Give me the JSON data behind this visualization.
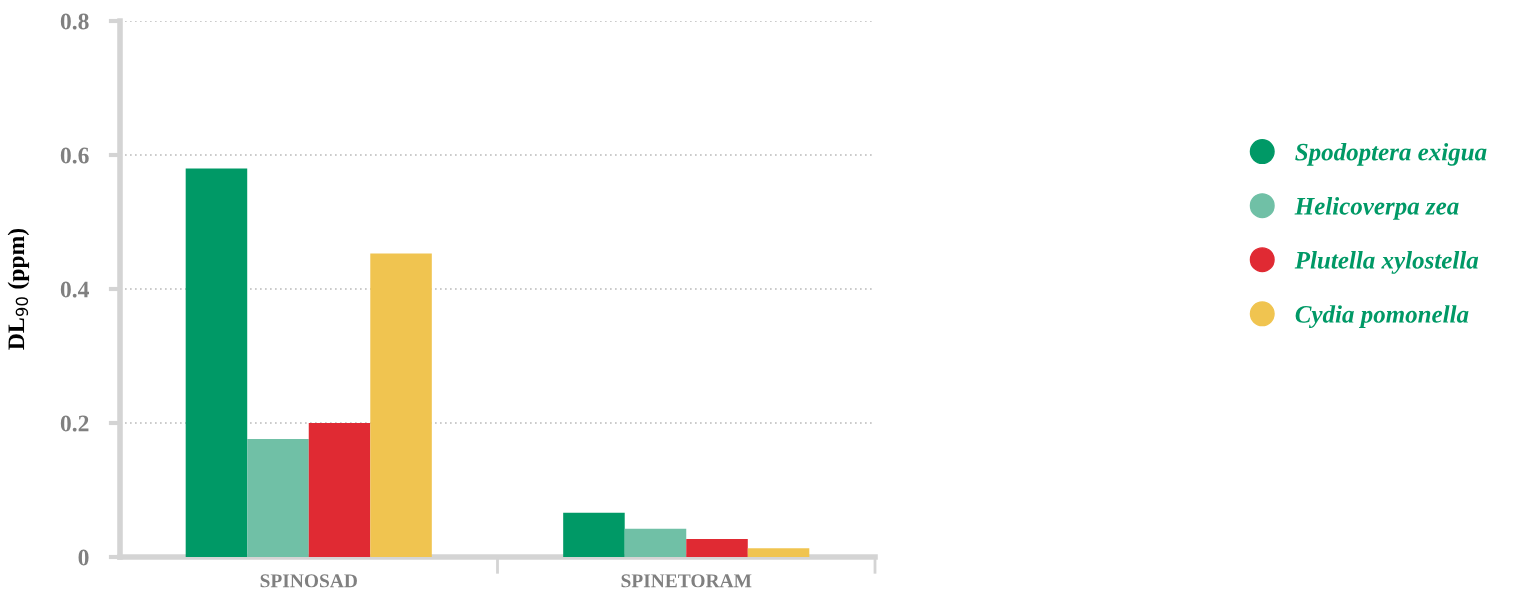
{
  "chart_data": {
    "type": "bar",
    "ylabel": "DL$_{90}$ (ppm)",
    "categories": [
      "SPINOSAD",
      "SPINETORAM"
    ],
    "series": [
      {
        "name": "Spodoptera exigua",
        "color": "#009966",
        "values": [
          0.58,
          0.066
        ]
      },
      {
        "name": "Helicoverpa zea",
        "color": "#70c0a6",
        "values": [
          0.176,
          0.042
        ]
      },
      {
        "name": "Plutella xylostella",
        "color": "#e02a33",
        "values": [
          0.2,
          0.027
        ]
      },
      {
        "name": "Cydia pomonella",
        "color": "#f0c450",
        "values": [
          0.453,
          0.013
        ]
      }
    ],
    "ylim": [
      0,
      0.8
    ],
    "yticks": [
      0,
      0.2,
      0.4,
      0.6,
      0.8
    ],
    "grid": "y",
    "legend": "right"
  }
}
